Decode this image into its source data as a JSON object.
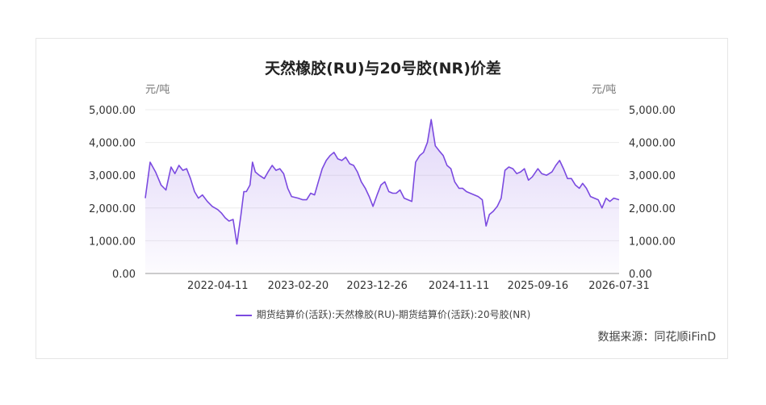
{
  "chart_data": {
    "type": "area",
    "title": "天然橡胶(RU)与20号胶(NR)价差",
    "unit_left": "元/吨",
    "unit_right": "元/吨",
    "ylim": [
      0,
      5000
    ],
    "y_ticks": [
      "0.00",
      "1,000.00",
      "2,000.00",
      "3,000.00",
      "4,000.00",
      "5,000.00"
    ],
    "x_ticks": [
      "2022-04-11",
      "2023-02-20",
      "2023-12-26",
      "2024-11-11",
      "2025-09-16",
      "2026-07-31"
    ],
    "series": [
      {
        "name": "期货结算价(活跃):天然橡胶(RU)-期货结算价(活跃):20号胶(NR)",
        "color": "#7b4ae0",
        "x": [
          "2021-07-01",
          "2021-07-20",
          "2021-08-10",
          "2021-09-01",
          "2021-09-20",
          "2021-10-10",
          "2021-10-25",
          "2021-11-10",
          "2021-11-25",
          "2021-12-10",
          "2021-12-25",
          "2022-01-10",
          "2022-01-25",
          "2022-02-10",
          "2022-03-01",
          "2022-03-20",
          "2022-04-11",
          "2022-04-25",
          "2022-05-10",
          "2022-05-25",
          "2022-06-10",
          "2022-06-25",
          "2022-07-10",
          "2022-07-22",
          "2022-08-01",
          "2022-08-15",
          "2022-08-25",
          "2022-09-05",
          "2022-09-20",
          "2022-10-10",
          "2022-10-25",
          "2022-11-10",
          "2022-11-25",
          "2022-12-10",
          "2022-12-25",
          "2023-01-10",
          "2023-01-25",
          "2023-02-20",
          "2023-03-10",
          "2023-03-25",
          "2023-04-10",
          "2023-04-25",
          "2023-05-10",
          "2023-05-25",
          "2023-06-10",
          "2023-06-25",
          "2023-07-10",
          "2023-07-25",
          "2023-08-10",
          "2023-08-25",
          "2023-09-10",
          "2023-09-25",
          "2023-10-10",
          "2023-10-25",
          "2023-11-10",
          "2023-11-25",
          "2023-12-10",
          "2023-12-26",
          "2024-01-10",
          "2024-01-25",
          "2024-02-10",
          "2024-02-25",
          "2024-03-10",
          "2024-03-25",
          "2024-04-10",
          "2024-04-25",
          "2024-05-10",
          "2024-05-25",
          "2024-06-10",
          "2024-06-25",
          "2024-07-10",
          "2024-07-25",
          "2024-08-10",
          "2024-08-25",
          "2024-09-10",
          "2024-09-25",
          "2024-10-10",
          "2024-10-25",
          "2024-11-11",
          "2024-11-25",
          "2024-12-10",
          "2024-12-25",
          "2025-01-10",
          "2025-01-25",
          "2025-02-10",
          "2025-02-25",
          "2025-03-10",
          "2025-03-25",
          "2025-04-10",
          "2025-04-25",
          "2025-05-10",
          "2025-05-25",
          "2025-06-10",
          "2025-06-25",
          "2025-07-10",
          "2025-07-25",
          "2025-08-10",
          "2025-08-25",
          "2025-09-16",
          "2025-10-01",
          "2025-10-20",
          "2025-11-10",
          "2025-11-25",
          "2025-12-10",
          "2025-12-25",
          "2026-01-10",
          "2026-01-25",
          "2026-02-10",
          "2026-02-25",
          "2026-03-10",
          "2026-03-25",
          "2026-04-10",
          "2026-04-25",
          "2026-05-10",
          "2026-05-25",
          "2026-06-10",
          "2026-06-25",
          "2026-07-10",
          "2026-07-31"
        ],
        "values": [
          2300,
          3400,
          3100,
          2700,
          2550,
          3250,
          3050,
          3300,
          3150,
          3200,
          2900,
          2500,
          2300,
          2400,
          2200,
          2050,
          1950,
          1850,
          1700,
          1600,
          1650,
          900,
          1750,
          2500,
          2500,
          2700,
          3400,
          3100,
          3000,
          2900,
          3100,
          3300,
          3150,
          3200,
          3050,
          2600,
          2350,
          2300,
          2250,
          2250,
          2450,
          2400,
          2800,
          3200,
          3450,
          3600,
          3700,
          3500,
          3450,
          3550,
          3350,
          3300,
          3100,
          2800,
          2600,
          2350,
          2050,
          2400,
          2700,
          2800,
          2500,
          2450,
          2450,
          2550,
          2300,
          2250,
          2200,
          3400,
          3600,
          3700,
          4000,
          4700,
          3900,
          3750,
          3600,
          3300,
          3200,
          2800,
          2600,
          2600,
          2500,
          2450,
          2400,
          2350,
          2250,
          1450,
          1800,
          1900,
          2050,
          2300,
          3150,
          3250,
          3200,
          3050,
          3100,
          3200,
          2850,
          2950,
          3200,
          3050,
          3000,
          3100,
          3300,
          3450,
          3200,
          2900,
          2900,
          2700,
          2600,
          2750,
          2600,
          2350,
          2300,
          2250,
          2000,
          2300,
          2200,
          2300,
          2250
        ]
      }
    ],
    "legend_position": "bottom-center",
    "grid": true
  },
  "footer": {
    "source": "数据来源：同花顺iFinD"
  }
}
